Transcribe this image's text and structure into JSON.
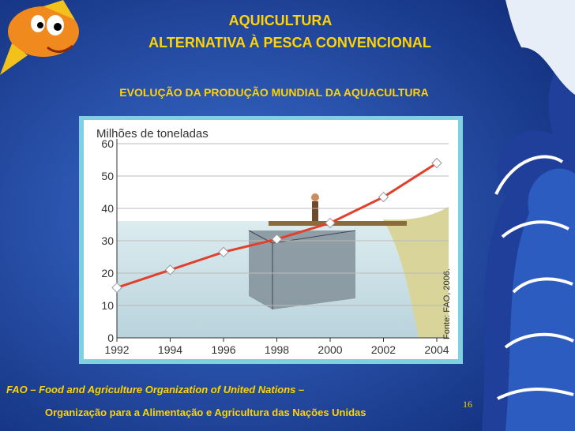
{
  "header": {
    "title_line1": "AQUICULTURA",
    "title_line2": "ALTERNATIVA À PESCA CONVENCIONAL"
  },
  "subtitle": "EVOLUÇÃO DA PRODUÇÃO MUNDIAL DA AQUACULTURA",
  "chart_data": {
    "type": "line",
    "y_label": "Milhões de toneladas",
    "source": "Fonte: FAO, 2006.",
    "x": [
      1992,
      1994,
      1996,
      1998,
      2000,
      2002,
      2004
    ],
    "series": [
      {
        "color": "#e0402c",
        "values": [
          15.5,
          21,
          26.5,
          30.5,
          35.5,
          43.5,
          54
        ]
      }
    ],
    "xlim": [
      1992,
      2004
    ],
    "xticks": [
      1992,
      1994,
      1996,
      1998,
      2000,
      2002,
      2004
    ],
    "ylim": [
      0,
      60
    ],
    "yticks": [
      0,
      10,
      20,
      30,
      40,
      50,
      60
    ],
    "grid": true
  },
  "footer": {
    "line1": "FAO – Food and Agriculture Organization of United Nations –",
    "line2": "Organização para a Alimentação e Agricultura das Nações Unidas"
  },
  "page_number": "16"
}
